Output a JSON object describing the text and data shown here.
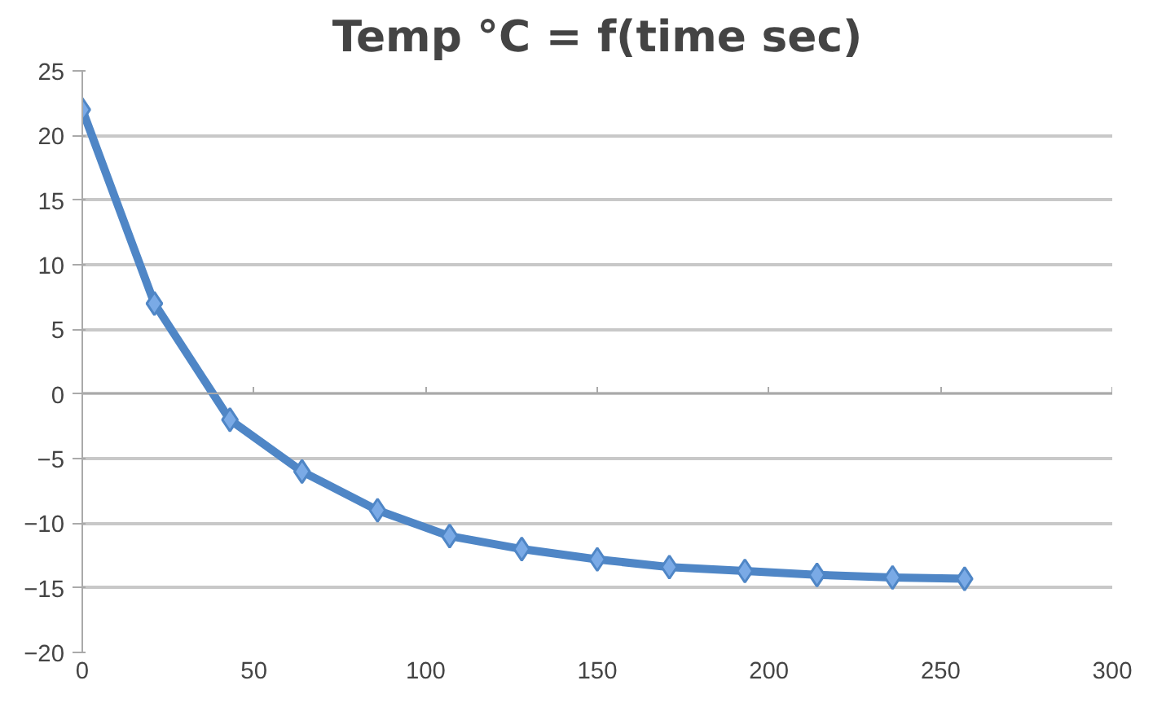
{
  "chart_data": {
    "type": "line",
    "title": "Temp °C = f(time sec)",
    "x": [
      0,
      21,
      43,
      64,
      86,
      107,
      128,
      150,
      171,
      193,
      214,
      236,
      257
    ],
    "series": [
      {
        "color": "#4f86c6",
        "values": [
          22,
          7,
          -2,
          -6,
          -9,
          -11,
          -12,
          -12.8,
          -13.4,
          -13.7,
          -14,
          -14.2,
          -14.3
        ]
      }
    ],
    "xlim": [
      0,
      300
    ],
    "xticks": [
      0,
      50,
      100,
      150,
      200,
      250,
      300
    ],
    "ylim": [
      -20,
      25
    ],
    "yticks": [
      -20,
      -15,
      -10,
      -5,
      0,
      5,
      10,
      15,
      20,
      25
    ],
    "grid": "y",
    "marker": "diamond",
    "line_style": "solid"
  }
}
